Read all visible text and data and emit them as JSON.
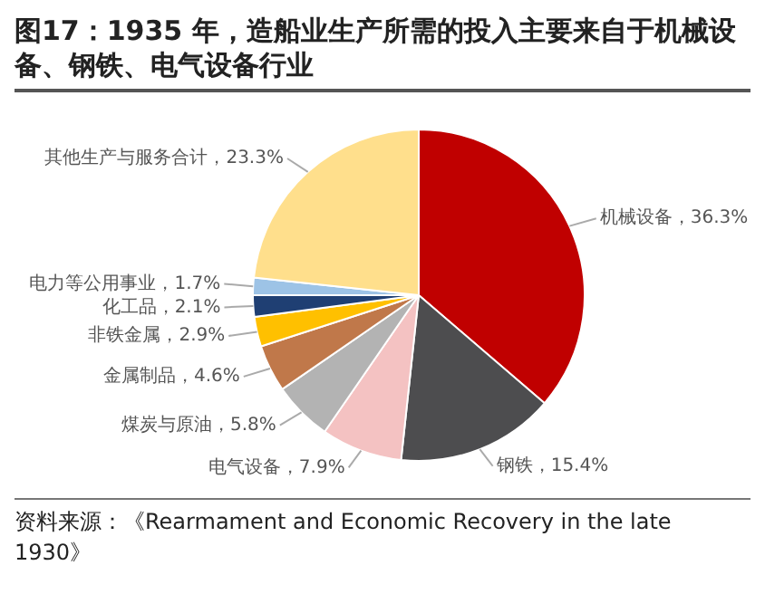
{
  "chart_data": {
    "type": "pie",
    "title": "图17：1935 年，造船业生产所需的投入主要来自于机械设备、钢铁、电气设备行业",
    "categories": [
      "机械设备",
      "钢铁",
      "电气设备",
      "煤炭与原油",
      "金属制品",
      "非铁金属",
      "化工品",
      "电力等公用事业",
      "其他生产与服务合计"
    ],
    "values": [
      36.3,
      15.4,
      7.9,
      5.8,
      4.6,
      2.9,
      2.1,
      1.7,
      23.3
    ],
    "value_labels": [
      "36.3%",
      "15.4%",
      "7.9%",
      "5.8%",
      "4.6%",
      "2.9%",
      "2.1%",
      "1.7%",
      "23.3%"
    ],
    "colors": [
      "#c00000",
      "#4d4d4f",
      "#f4c2c2",
      "#b3b3b3",
      "#c0784a",
      "#ffc000",
      "#1f3f73",
      "#9dc3e6",
      "#ffdf8c"
    ],
    "legend": false,
    "annotations": [
      "资料来源：《Rearmament and Economic Recovery in the late 1930》"
    ]
  }
}
